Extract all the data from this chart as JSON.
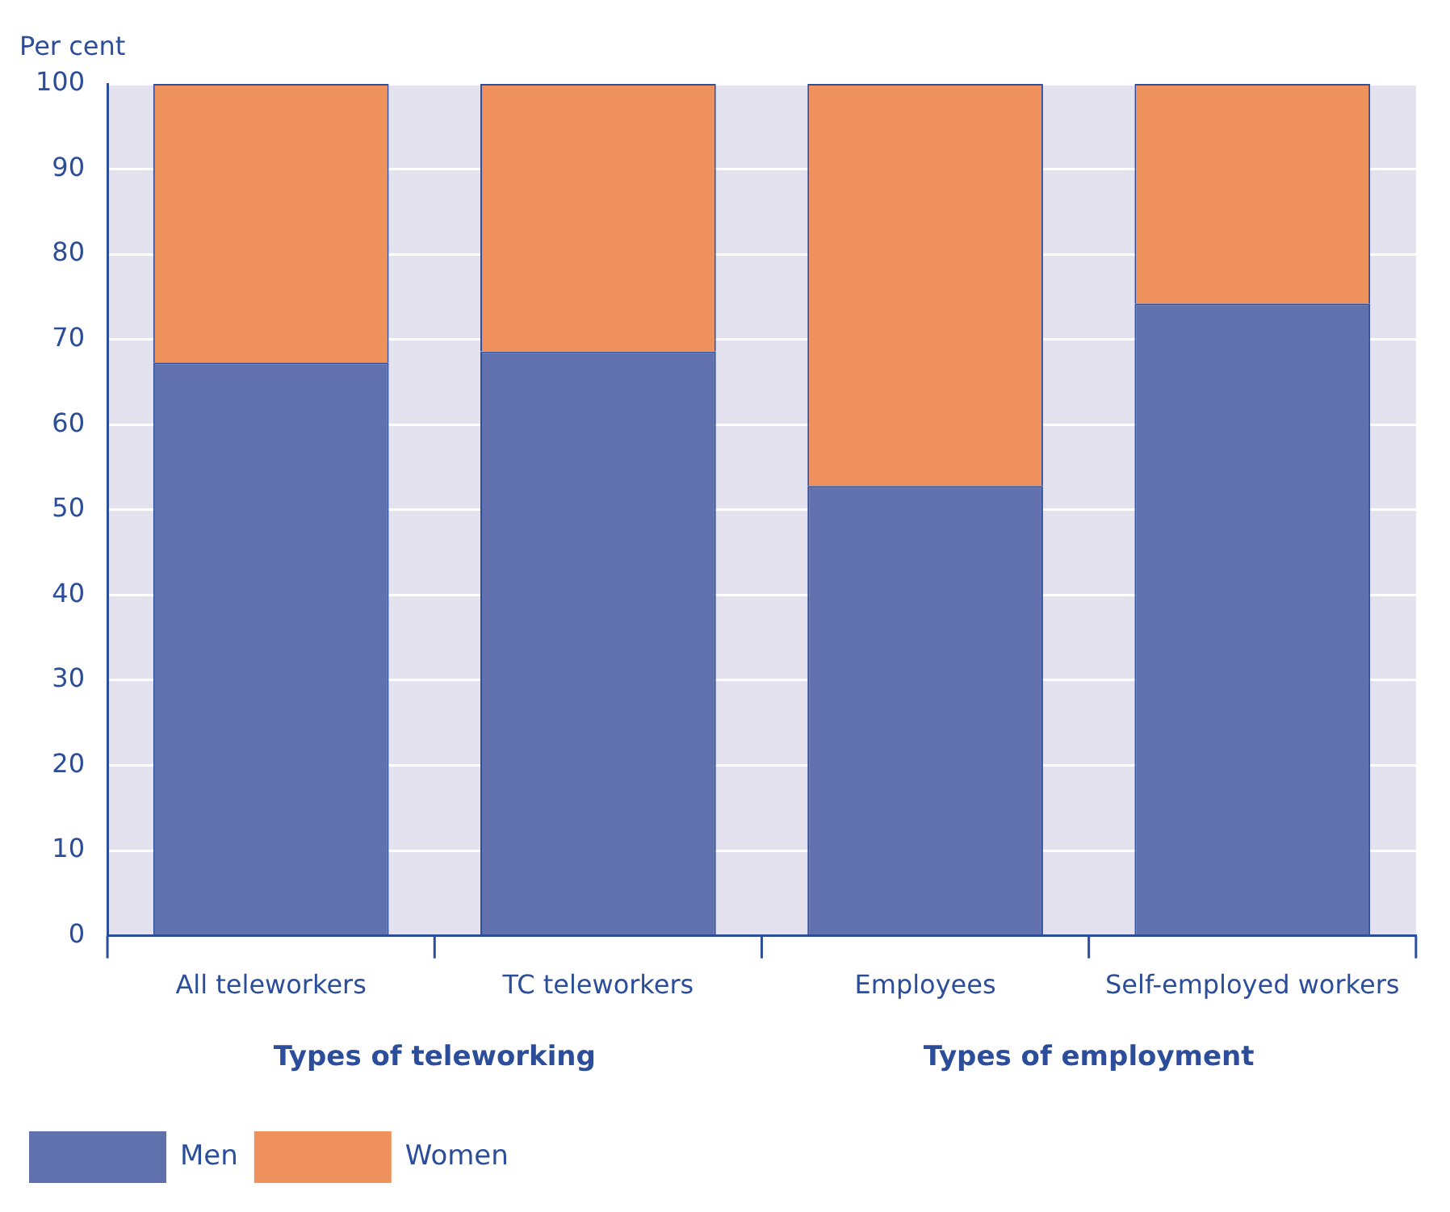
{
  "chart_data": {
    "type": "bar",
    "stacked": true,
    "ylabel": "Per cent",
    "categories": [
      "All teleworkers",
      "TC teleworkers",
      "Employees",
      "Self-employed workers"
    ],
    "series": [
      {
        "name": "Men",
        "color": "#6171ae",
        "values": [
          67.3,
          68.6,
          52.8,
          74.2
        ]
      },
      {
        "name": "Women",
        "color": "#ef915c",
        "values": [
          32.7,
          31.4,
          47.2,
          25.8
        ]
      }
    ],
    "annotations": [
      "Types of teleworking",
      "Types of employment"
    ],
    "ylim": [
      0,
      100
    ],
    "yticks": [
      0,
      10,
      20,
      30,
      40,
      50,
      60,
      70,
      80,
      90,
      100
    ],
    "grid": "y",
    "legend": "bottom left"
  }
}
